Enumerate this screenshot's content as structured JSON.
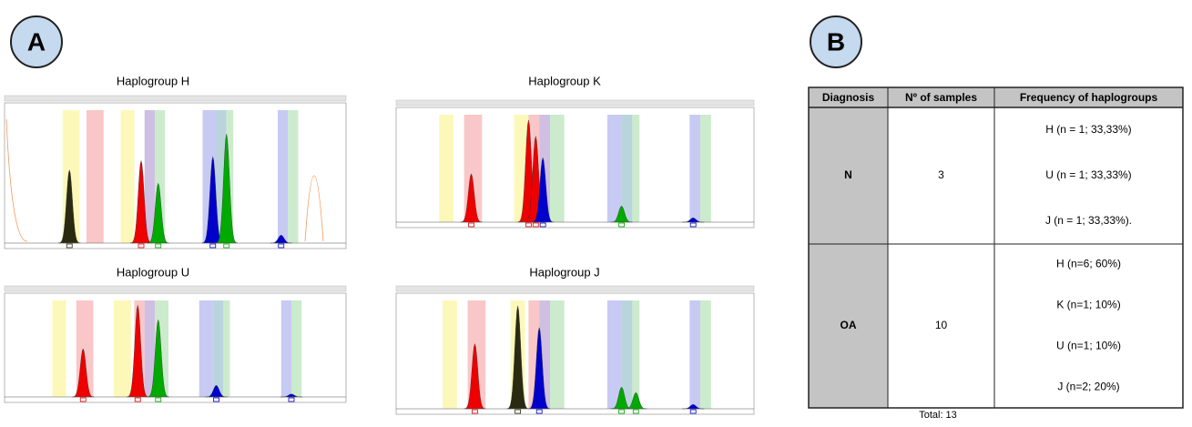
{
  "panel_a": {
    "label": "A",
    "plots": [
      {
        "title": "Haplogroup H"
      },
      {
        "title": "Haplogroup K"
      },
      {
        "title": "Haplogroup U"
      },
      {
        "title": "Haplogroup J"
      }
    ]
  },
  "panel_b": {
    "label": "B",
    "table": {
      "header": [
        "Diagnosis",
        "Nº of samples",
        "Frequency of haplogroups"
      ],
      "rows": [
        {
          "diagnosis": "N",
          "samples": 3,
          "frequencies": [
            "H (n = 1; 33,33%)",
            "U (n = 1; 33,33%)",
            "J (n = 1; 33,33%)."
          ]
        },
        {
          "diagnosis": "OA",
          "samples": 10,
          "frequencies": [
            "H (n=6; 60%)",
            "K (n=1; 10%)",
            "U (n=1; 10%)",
            "J (n=2; 20%)"
          ]
        }
      ]
    },
    "total": "Total: 13"
  }
}
